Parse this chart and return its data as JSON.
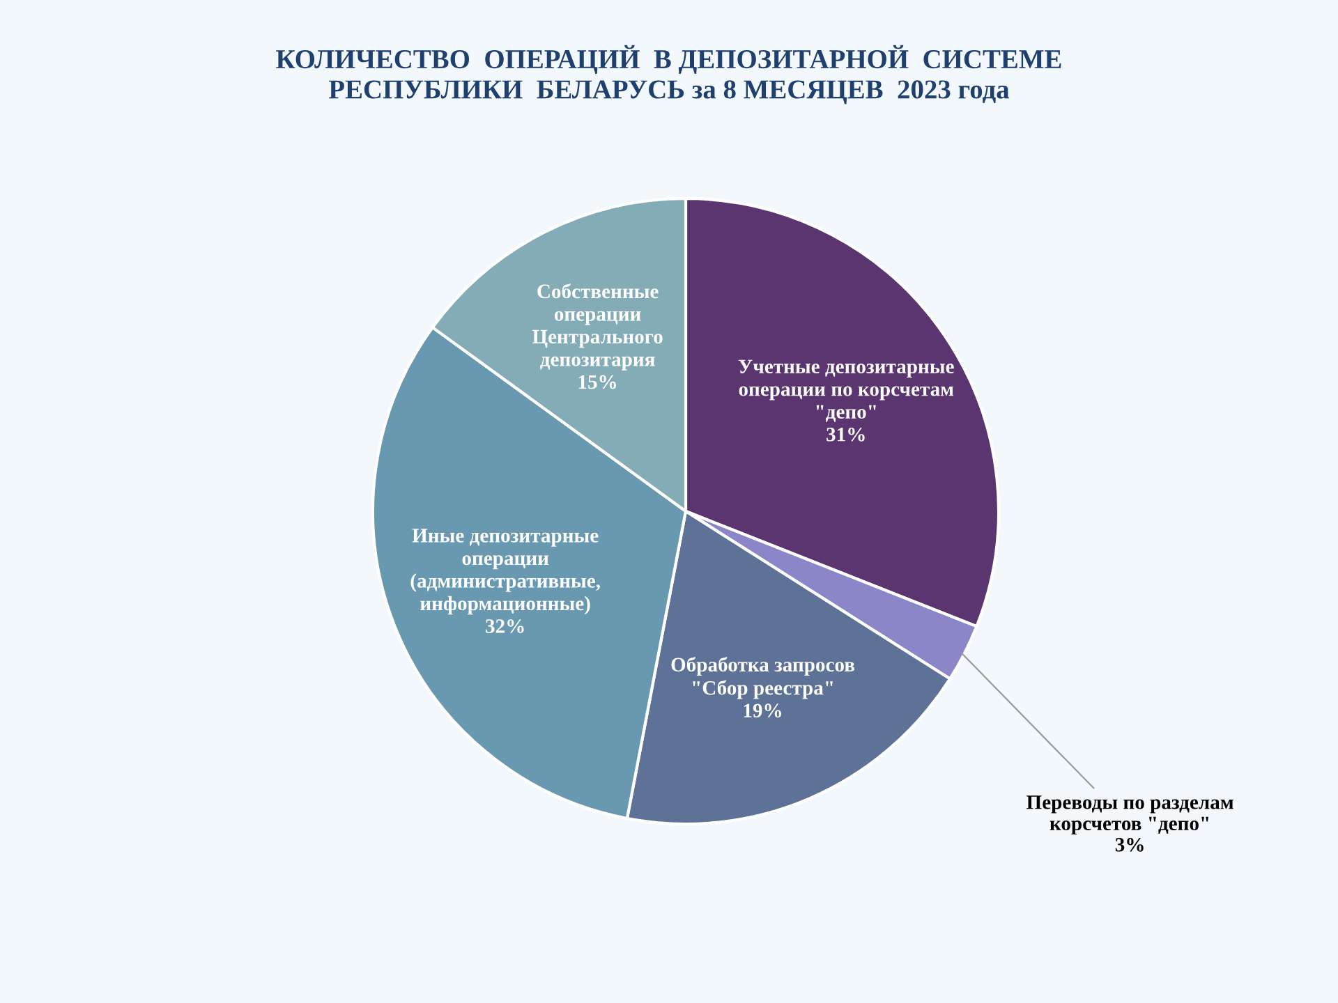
{
  "chart_data": {
    "type": "pie",
    "title": "КОЛИЧЕСТВО  ОПЕРАЦИЙ  В ДЕПОЗИТАРНОЙ  СИСТЕМЕ\nРЕСПУБЛИКИ  БЕЛАРУСЬ за 8 МЕСЯЦЕВ  2023 года",
    "categories": [
      "Учетные депозитарные\nоперации по корсчетам\n\"депо\"",
      "Переводы по разделам\nкорсчетов \"депо\"",
      "Обработка запросов\n\"Сбор реестра\"",
      "Иные депозитарные\nоперации\n(административные,\nинформационные)",
      "Собственные\nоперации\nЦентрального\nдепозитария"
    ],
    "values": [
      31,
      3,
      19,
      32,
      15
    ],
    "value_labels": [
      "31%",
      "3%",
      "19%",
      "32%",
      "15%"
    ],
    "colors": [
      "#5b3570",
      "#8b86c8",
      "#5e7196",
      "#6899b0",
      "#84acb6"
    ]
  }
}
